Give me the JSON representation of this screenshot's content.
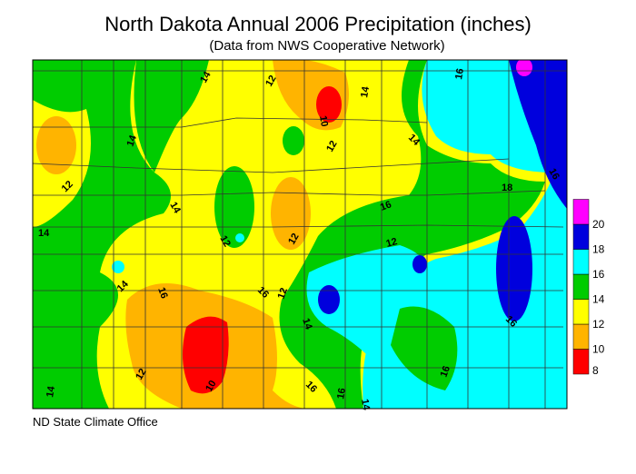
{
  "title": "North Dakota Annual 2006 Precipitation (inches)",
  "subtitle": "(Data from NWS Cooperative Network)",
  "credit": "ND State Climate Office",
  "legend": {
    "bins": [
      {
        "label": "8",
        "color": "#ff0000"
      },
      {
        "label": "10",
        "color": "#ffb400"
      },
      {
        "label": "12",
        "color": "#ffff00"
      },
      {
        "label": "14",
        "color": "#00cc00"
      },
      {
        "label": "16",
        "color": "#00ffff"
      },
      {
        "label": "18",
        "color": "#0000dd"
      },
      {
        "label": "20",
        "color": "#ff00ff"
      }
    ]
  },
  "contour_labels": [
    "14",
    "12",
    "10",
    "14",
    "16",
    "14",
    "12",
    "12",
    "14",
    "16",
    "18",
    "14",
    "16",
    "12",
    "14",
    "12",
    "12",
    "14",
    "16",
    "16",
    "12",
    "14",
    "16",
    "16",
    "10",
    "12",
    "14",
    "16",
    "14",
    "16",
    "14"
  ]
}
